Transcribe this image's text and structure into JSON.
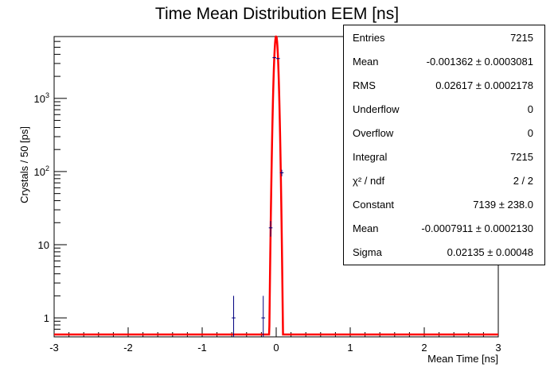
{
  "chart_data": {
    "type": "histogram",
    "title": "Time Mean Distribution EEM [ns]",
    "xlabel": "Mean Time [ns]",
    "ylabel": "Crystals / 50 [ps]",
    "xlim": [
      -3,
      3
    ],
    "ylim": [
      0.55,
      7000
    ],
    "yscale": "log",
    "xticks": [
      -3,
      -2,
      -1,
      0,
      1,
      2,
      3
    ],
    "xtick_labels": [
      "-3",
      "-2",
      "-1",
      "0",
      "1",
      "2",
      "3"
    ],
    "yticks": [
      1,
      10,
      100,
      1000
    ],
    "points": [
      {
        "x": -0.575,
        "y": 1,
        "err": 1
      },
      {
        "x": -0.175,
        "y": 1,
        "err": 1
      },
      {
        "x": -0.075,
        "y": 17,
        "err": 4.1
      },
      {
        "x": -0.025,
        "y": 3600,
        "err": 60
      },
      {
        "x": 0.025,
        "y": 3500,
        "err": 59
      },
      {
        "x": 0.075,
        "y": 96,
        "err": 9.8
      }
    ],
    "fit": {
      "type": "gaussian",
      "constant": 7139,
      "mean": -0.0007911,
      "sigma": 0.02135,
      "color": "#ff0000"
    },
    "colors": {
      "data": "#000080",
      "fit": "#ff0000",
      "axis": "#000000"
    },
    "grid": false,
    "stats_position": "top-right"
  },
  "stats": [
    {
      "label": "Entries",
      "value": "7215"
    },
    {
      "label": "Mean",
      "value": "-0.001362 ± 0.0003081"
    },
    {
      "label": "RMS",
      "value": "0.02617 ± 0.0002178"
    },
    {
      "label": "Underflow",
      "value": "0"
    },
    {
      "label": "Overflow",
      "value": "0"
    },
    {
      "label": "Integral",
      "value": "7215"
    },
    {
      "label": "χ² / ndf",
      "value": "2 / 2"
    },
    {
      "label": "Constant",
      "value": "7139 ± 238.0"
    },
    {
      "label": "Mean",
      "value": "-0.0007911 ± 0.0002130"
    },
    {
      "label": "Sigma",
      "value": "0.02135 ± 0.00048"
    }
  ]
}
